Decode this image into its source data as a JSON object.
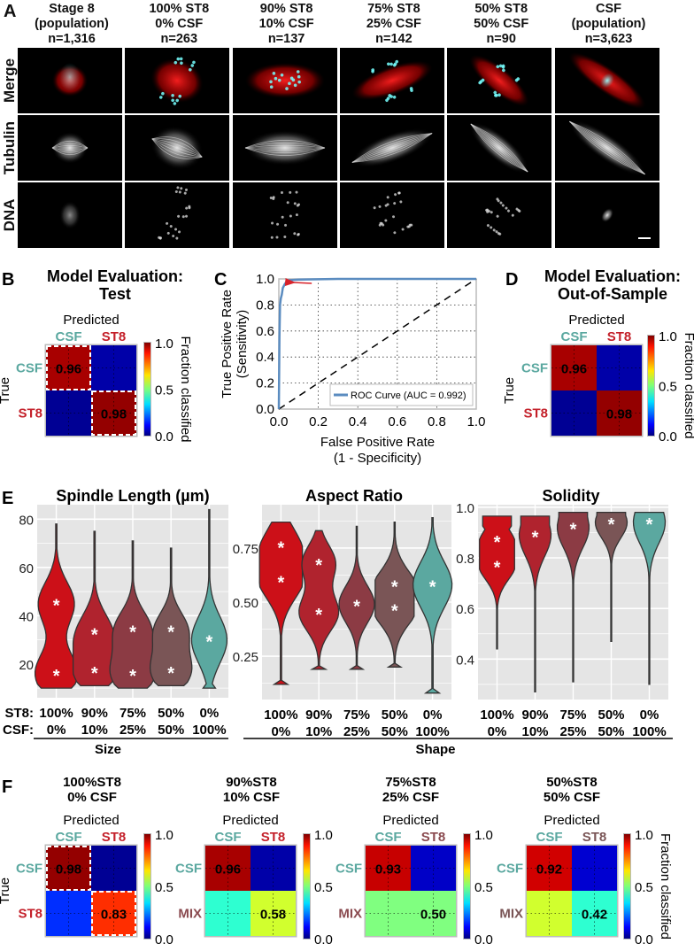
{
  "panel_A": {
    "letter": "A",
    "columns": [
      {
        "line1": "Stage 8",
        "line2": "(population)",
        "line3": "n=1,316"
      },
      {
        "line1": "100% ST8",
        "line2": "0% CSF",
        "line3": "n=263"
      },
      {
        "line1": "90% ST8",
        "line2": "10% CSF",
        "line3": "n=137"
      },
      {
        "line1": "75% ST8",
        "line2": "25% CSF",
        "line3": "n=142"
      },
      {
        "line1": "50% ST8",
        "line2": "50% CSF",
        "line3": "n=90"
      },
      {
        "line1": "CSF",
        "line2": "(population)",
        "line3": "n=3,623"
      }
    ],
    "rows": [
      "Merge",
      "Tubulin",
      "DNA"
    ]
  },
  "colors": {
    "csf_teal": "#5ba8a0",
    "st8_red": "#c4202a",
    "mix_brown": "#8a4a4f",
    "roc_blue": "#5b8cc0",
    "arrow_red": "#d8222a",
    "violin_panel_bg": "#e5e5e5",
    "violin_fills": [
      "#cc1018",
      "#b0232e",
      "#8c3b44",
      "#7a5556",
      "#5ba8a0"
    ]
  },
  "chart_data": [
    {
      "id": "B",
      "type": "heatmap",
      "letter": "B",
      "title_line1": "Model Evaluation:",
      "title_line2": "Test",
      "xlabel": "Predicted",
      "ylabel": "True",
      "x_categories": [
        "CSF",
        "ST8"
      ],
      "y_categories": [
        "CSF",
        "ST8"
      ],
      "values": [
        [
          0.96,
          0.04
        ],
        [
          0.02,
          0.98
        ]
      ],
      "cell_labels": [
        [
          "0.96",
          ""
        ],
        [
          "",
          "0.98"
        ]
      ],
      "dashed_cells": [
        [
          0,
          0
        ],
        [
          1,
          1
        ]
      ],
      "colorbar": {
        "label": "Fraction classified",
        "ticks": [
          "1.0",
          "0.5",
          "0.0"
        ],
        "range": [
          0,
          1
        ]
      }
    },
    {
      "id": "C",
      "type": "line",
      "letter": "C",
      "xlabel_line1": "False Positive Rate",
      "xlabel_line2": "(1 - Specificity)",
      "ylabel_line1": "True Positive Rate",
      "ylabel_line2": "(Sensitivity)",
      "xlim": [
        0,
        1
      ],
      "ylim": [
        0,
        1
      ],
      "xticks": [
        "0.0",
        "0.2",
        "0.4",
        "0.6",
        "0.8",
        "1.0"
      ],
      "yticks": [
        "0.0",
        "0.2",
        "0.4",
        "0.6",
        "0.8",
        "1.0"
      ],
      "grid": true,
      "legend": "ROC Curve (AUC = 0.992)",
      "legend_position": "bottom-right",
      "series": [
        {
          "name": "ROC Curve",
          "x": [
            0,
            0.003,
            0.006,
            0.01,
            0.015,
            0.02,
            0.03,
            0.04,
            0.05,
            0.1,
            0.3,
            1.0
          ],
          "y": [
            0,
            0.55,
            0.8,
            0.85,
            0.88,
            0.93,
            0.96,
            0.98,
            0.99,
            0.995,
            1.0,
            1.0
          ]
        },
        {
          "name": "Chance",
          "x": [
            0,
            1
          ],
          "y": [
            0,
            1
          ]
        }
      ],
      "annotation": {
        "type": "arrow",
        "points_to": [
          0.05,
          0.98
        ]
      }
    },
    {
      "id": "D",
      "type": "heatmap",
      "letter": "D",
      "title_line1": "Model Evaluation:",
      "title_line2": "Out-of-Sample",
      "xlabel": "Predicted",
      "ylabel": "True",
      "x_categories": [
        "CSF",
        "ST8"
      ],
      "y_categories": [
        "CSF",
        "ST8"
      ],
      "values": [
        [
          0.96,
          0.04
        ],
        [
          0.02,
          0.98
        ]
      ],
      "cell_labels": [
        [
          "0.96",
          ""
        ],
        [
          "",
          "0.98"
        ]
      ],
      "colorbar": {
        "label": "Fraction classified",
        "ticks": [
          "1.0",
          "0.5",
          "0.0"
        ],
        "range": [
          0,
          1
        ]
      }
    },
    {
      "id": "E1",
      "type": "violin",
      "letter": "E",
      "title": "Spindle Length (µm)",
      "categories_st8": [
        "100%",
        "90%",
        "75%",
        "50%",
        "0%"
      ],
      "categories_csf": [
        "0%",
        "10%",
        "25%",
        "50%",
        "100%"
      ],
      "ylim": [
        6,
        86
      ],
      "yticks": [
        20,
        40,
        60,
        80
      ],
      "group_label": "Size",
      "violins": [
        {
          "min": 10,
          "max": 78,
          "modes": [
            16,
            45
          ]
        },
        {
          "min": 11,
          "max": 75,
          "modes": [
            17,
            33
          ]
        },
        {
          "min": 10,
          "max": 71,
          "modes": [
            16,
            34
          ]
        },
        {
          "min": 11,
          "max": 68,
          "modes": [
            17,
            34
          ]
        },
        {
          "min": 10,
          "max": 84,
          "modes": [
            30
          ]
        }
      ]
    },
    {
      "id": "E2",
      "type": "violin",
      "title": "Aspect Ratio",
      "categories_st8": [
        "100%",
        "90%",
        "75%",
        "50%",
        "0%"
      ],
      "categories_csf": [
        "0%",
        "10%",
        "25%",
        "50%",
        "100%"
      ],
      "ylim": [
        0.05,
        0.95
      ],
      "yticks": [
        0.25,
        0.5,
        0.75
      ],
      "ytick_labels": [
        "0.25",
        "0.50",
        "0.75"
      ],
      "violins": [
        {
          "min": 0.12,
          "max": 0.87,
          "modes": [
            0.6,
            0.76
          ]
        },
        {
          "min": 0.19,
          "max": 0.83,
          "modes": [
            0.45,
            0.68
          ]
        },
        {
          "min": 0.19,
          "max": 0.85,
          "modes": [
            0.49
          ]
        },
        {
          "min": 0.2,
          "max": 0.87,
          "modes": [
            0.47,
            0.58
          ]
        },
        {
          "min": 0.08,
          "max": 0.89,
          "modes": [
            0.58
          ]
        }
      ]
    },
    {
      "id": "E3",
      "type": "violin",
      "title": "Solidity",
      "categories_st8": [
        "100%",
        "90%",
        "75%",
        "50%",
        "0%"
      ],
      "categories_csf": [
        "0%",
        "10%",
        "25%",
        "50%",
        "100%"
      ],
      "ylim": [
        0.24,
        1.01
      ],
      "yticks": [
        0.4,
        0.6,
        0.8,
        1.0
      ],
      "ytick_labels": [
        "0.4",
        "0.6",
        "0.8",
        "1.0"
      ],
      "group_label": "Shape",
      "violins": [
        {
          "min": 0.44,
          "max": 0.965,
          "modes": [
            0.77,
            0.87
          ]
        },
        {
          "min": 0.27,
          "max": 0.965,
          "modes": [
            0.89
          ]
        },
        {
          "min": 0.31,
          "max": 0.98,
          "modes": [
            0.92
          ]
        },
        {
          "min": 0.47,
          "max": 0.98,
          "modes": [
            0.94
          ]
        },
        {
          "min": 0.3,
          "max": 0.98,
          "modes": [
            0.94
          ]
        }
      ]
    },
    {
      "id": "F1",
      "type": "heatmap",
      "letter": "F",
      "title_line1": "100%ST8",
      "title_line2": "0% CSF",
      "xlabel": "Predicted",
      "ylabel": "True",
      "x_categories": [
        "CSF",
        "ST8"
      ],
      "y_categories": [
        "CSF",
        "ST8"
      ],
      "values": [
        [
          0.98,
          0.02
        ],
        [
          0.17,
          0.83
        ]
      ],
      "cell_labels": [
        [
          "0.98",
          ""
        ],
        [
          "",
          "0.83"
        ]
      ],
      "dashed_cells": [
        [
          0,
          0
        ],
        [
          1,
          1
        ]
      ],
      "colorbar": {
        "ticks": [
          "1.0",
          "0.5",
          "0.0"
        ],
        "range": [
          0,
          1
        ]
      }
    },
    {
      "id": "F2",
      "type": "heatmap",
      "title_line1": "90%ST8",
      "title_line2": "10% CSF",
      "xlabel": "Predicted",
      "x_categories": [
        "CSF",
        "ST8"
      ],
      "y_categories": [
        "CSF",
        "MIX"
      ],
      "values": [
        [
          0.96,
          0.04
        ],
        [
          0.42,
          0.58
        ]
      ],
      "cell_labels": [
        [
          "0.96",
          ""
        ],
        [
          "",
          "0.58"
        ]
      ],
      "colorbar": {
        "ticks": [
          "1.0",
          "0.5",
          "0.0"
        ],
        "range": [
          0,
          1
        ]
      }
    },
    {
      "id": "F3",
      "type": "heatmap",
      "title_line1": "75%ST8",
      "title_line2": "25% CSF",
      "xlabel": "Predicted",
      "x_categories": [
        "CSF",
        "ST8"
      ],
      "y_categories": [
        "CSF",
        "MIX"
      ],
      "values": [
        [
          0.93,
          0.07
        ],
        [
          0.5,
          0.5
        ]
      ],
      "cell_labels": [
        [
          "0.93",
          ""
        ],
        [
          "",
          "0.50"
        ]
      ],
      "colorbar": {
        "ticks": [
          "1.0",
          "0.5",
          "0.0"
        ],
        "range": [
          0,
          1
        ]
      }
    },
    {
      "id": "F4",
      "type": "heatmap",
      "title_line1": "50%ST8",
      "title_line2": "50% CSF",
      "xlabel": "Predicted",
      "x_categories": [
        "CSF",
        "ST8"
      ],
      "y_categories": [
        "CSF",
        "MIX"
      ],
      "values": [
        [
          0.92,
          0.08
        ],
        [
          0.58,
          0.42
        ]
      ],
      "cell_labels": [
        [
          "0.92",
          ""
        ],
        [
          "",
          "0.42"
        ]
      ],
      "colorbar": {
        "label": "Fraction classified",
        "ticks": [
          "1.0",
          "0.5",
          "0.0"
        ],
        "range": [
          0,
          1
        ]
      }
    }
  ],
  "labels": {
    "st8_prefix": "ST8:",
    "csf_prefix": "CSF:",
    "size": "Size",
    "shape": "Shape"
  }
}
